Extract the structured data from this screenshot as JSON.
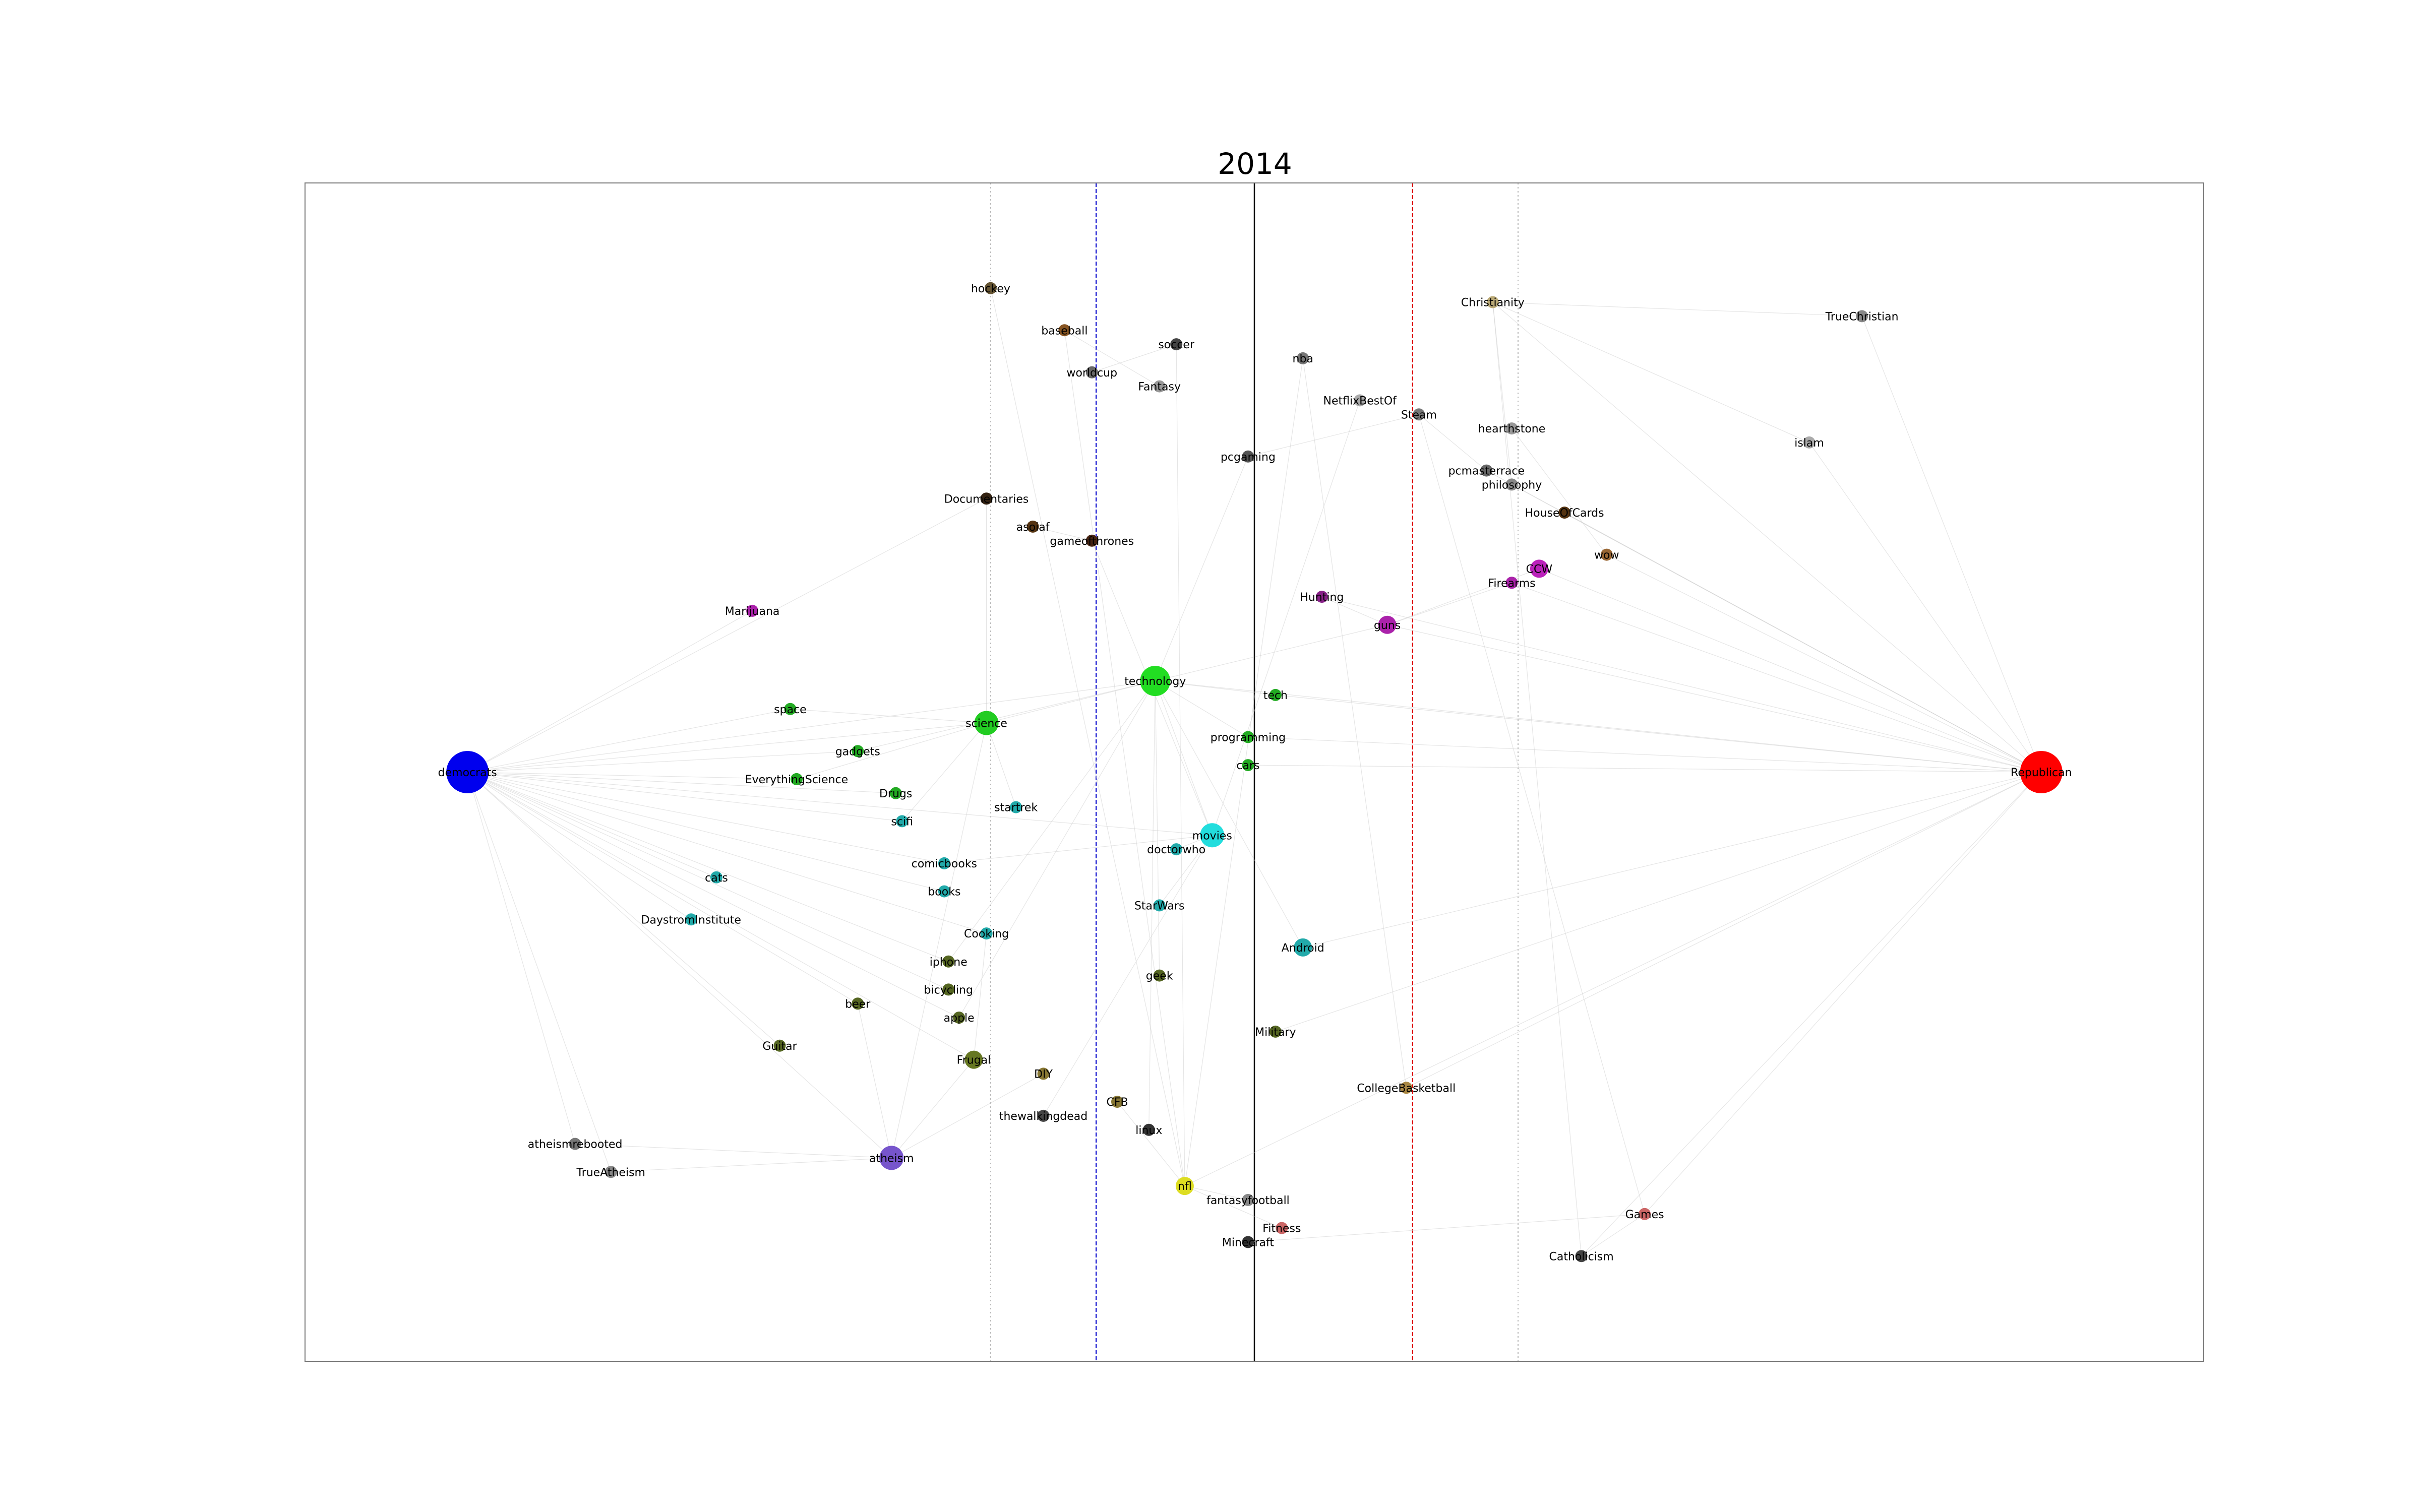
{
  "chart_data": {
    "type": "scatter",
    "title": "2014",
    "xlabel": "",
    "ylabel": "",
    "xlim": [
      -4.5,
      4.5
    ],
    "ylim": [
      -4.2,
      4.2
    ],
    "grid": false,
    "reference_lines": [
      {
        "x": -1.25,
        "color": "#bbbbbb",
        "style": "dotted"
      },
      {
        "x": -0.75,
        "color": "#0000cc",
        "style": "dashed"
      },
      {
        "x": 0,
        "color": "#000000",
        "style": "solid"
      },
      {
        "x": 0.75,
        "color": "#dd0000",
        "style": "dashed"
      },
      {
        "x": 1.25,
        "color": "#bbbbbb",
        "style": "dotted"
      }
    ],
    "nodes": [
      {
        "label": "democrats",
        "x": -3.73,
        "y": 0.0,
        "color": "#0000ee",
        "size": 7
      },
      {
        "label": "Republican",
        "x": 3.73,
        "y": 0.0,
        "color": "#ff0000",
        "size": 7
      },
      {
        "label": "technology",
        "x": -0.47,
        "y": 0.65,
        "color": "#22dd22",
        "size": 5
      },
      {
        "label": "science",
        "x": -1.27,
        "y": 0.35,
        "color": "#22cc22",
        "size": 4
      },
      {
        "label": "movies",
        "x": -0.2,
        "y": -0.45,
        "color": "#22dddd",
        "size": 4
      },
      {
        "label": "atheism",
        "x": -1.72,
        "y": -2.75,
        "color": "#7755cc",
        "size": 4
      },
      {
        "label": "nfl",
        "x": -0.33,
        "y": -2.95,
        "color": "#dddd22",
        "size": 3
      },
      {
        "label": "hockey",
        "x": -1.25,
        "y": 3.45,
        "color": "#665533",
        "size": 2
      },
      {
        "label": "baseball",
        "x": -0.9,
        "y": 3.15,
        "color": "#885522",
        "size": 2
      },
      {
        "label": "soccer",
        "x": -0.37,
        "y": 3.05,
        "color": "#444444",
        "size": 2
      },
      {
        "label": "worldcup",
        "x": -0.77,
        "y": 2.85,
        "color": "#666666",
        "size": 2
      },
      {
        "label": "Fantasy",
        "x": -0.45,
        "y": 2.75,
        "color": "#999999",
        "size": 2
      },
      {
        "label": "nba",
        "x": 0.23,
        "y": 2.95,
        "color": "#777777",
        "size": 2
      },
      {
        "label": "Christianity",
        "x": 1.13,
        "y": 3.35,
        "color": "#bbaa77",
        "size": 2
      },
      {
        "label": "TrueChristian",
        "x": 2.88,
        "y": 3.25,
        "color": "#888888",
        "size": 2
      },
      {
        "label": "NetflixBestOf",
        "x": 0.5,
        "y": 2.65,
        "color": "#aaaaaa",
        "size": 2
      },
      {
        "label": "Steam",
        "x": 0.78,
        "y": 2.55,
        "color": "#777777",
        "size": 2
      },
      {
        "label": "hearthstone",
        "x": 1.22,
        "y": 2.45,
        "color": "#999999",
        "size": 2
      },
      {
        "label": "islam",
        "x": 2.63,
        "y": 2.35,
        "color": "#aaaaaa",
        "size": 2
      },
      {
        "label": "pcgaming",
        "x": -0.03,
        "y": 2.25,
        "color": "#555555",
        "size": 2
      },
      {
        "label": "pcmasterrace",
        "x": 1.1,
        "y": 2.15,
        "color": "#666666",
        "size": 2
      },
      {
        "label": "philosophy",
        "x": 1.22,
        "y": 2.05,
        "color": "#888888",
        "size": 2
      },
      {
        "label": "Documentaries",
        "x": -1.27,
        "y": 1.95,
        "color": "#332211",
        "size": 2
      },
      {
        "label": "HouseOfCards",
        "x": 1.47,
        "y": 1.85,
        "color": "#553311",
        "size": 2
      },
      {
        "label": "asoiaf",
        "x": -1.05,
        "y": 1.75,
        "color": "#553311",
        "size": 2
      },
      {
        "label": "gameofthrones",
        "x": -0.77,
        "y": 1.65,
        "color": "#442211",
        "size": 2
      },
      {
        "label": "wow",
        "x": 1.67,
        "y": 1.55,
        "color": "#996633",
        "size": 2
      },
      {
        "label": "CCW",
        "x": 1.35,
        "y": 1.45,
        "color": "#bb22bb",
        "size": 3
      },
      {
        "label": "Firearms",
        "x": 1.22,
        "y": 1.35,
        "color": "#aa22aa",
        "size": 2
      },
      {
        "label": "Marijuana",
        "x": -2.38,
        "y": 1.15,
        "color": "#aa22aa",
        "size": 2
      },
      {
        "label": "Hunting",
        "x": 0.32,
        "y": 1.25,
        "color": "#882288",
        "size": 2
      },
      {
        "label": "guns",
        "x": 0.63,
        "y": 1.05,
        "color": "#aa22aa",
        "size": 3
      },
      {
        "label": "tech",
        "x": 0.1,
        "y": 0.55,
        "color": "#22aa22",
        "size": 2
      },
      {
        "label": "space",
        "x": -2.2,
        "y": 0.45,
        "color": "#22aa22",
        "size": 2
      },
      {
        "label": "programming",
        "x": -0.03,
        "y": 0.25,
        "color": "#22aa22",
        "size": 2
      },
      {
        "label": "gadgets",
        "x": -1.88,
        "y": 0.15,
        "color": "#22aa22",
        "size": 2
      },
      {
        "label": "cars",
        "x": -0.03,
        "y": 0.05,
        "color": "#22aa22",
        "size": 2
      },
      {
        "label": "EverythingScience",
        "x": -2.17,
        "y": -0.05,
        "color": "#22aa22",
        "size": 2
      },
      {
        "label": "Drugs",
        "x": -1.7,
        "y": -0.15,
        "color": "#22aa22",
        "size": 2
      },
      {
        "label": "startrek",
        "x": -1.13,
        "y": -0.25,
        "color": "#22aaaa",
        "size": 2
      },
      {
        "label": "scifi",
        "x": -1.67,
        "y": -0.35,
        "color": "#22aaaa",
        "size": 2
      },
      {
        "label": "doctorwho",
        "x": -0.37,
        "y": -0.55,
        "color": "#22aaaa",
        "size": 2
      },
      {
        "label": "comicbooks",
        "x": -1.47,
        "y": -0.65,
        "color": "#22aaaa",
        "size": 2
      },
      {
        "label": "cats",
        "x": -2.55,
        "y": -0.75,
        "color": "#22aaaa",
        "size": 2
      },
      {
        "label": "books",
        "x": -1.47,
        "y": -0.85,
        "color": "#22aaaa",
        "size": 2
      },
      {
        "label": "StarWars",
        "x": -0.45,
        "y": -0.95,
        "color": "#22aaaa",
        "size": 2
      },
      {
        "label": "DaystromInstitute",
        "x": -2.67,
        "y": -1.05,
        "color": "#22aaaa",
        "size": 2
      },
      {
        "label": "Cooking",
        "x": -1.27,
        "y": -1.15,
        "color": "#22aaaa",
        "size": 2
      },
      {
        "label": "Android",
        "x": 0.23,
        "y": -1.25,
        "color": "#22aaaa",
        "size": 3
      },
      {
        "label": "iphone",
        "x": -1.45,
        "y": -1.35,
        "color": "#556622",
        "size": 2
      },
      {
        "label": "bicycling",
        "x": -1.45,
        "y": -1.55,
        "color": "#556622",
        "size": 2
      },
      {
        "label": "geek",
        "x": -0.45,
        "y": -1.45,
        "color": "#556622",
        "size": 2
      },
      {
        "label": "beer",
        "x": -1.88,
        "y": -1.65,
        "color": "#556622",
        "size": 2
      },
      {
        "label": "apple",
        "x": -1.4,
        "y": -1.75,
        "color": "#556622",
        "size": 2
      },
      {
        "label": "Military",
        "x": 0.1,
        "y": -1.85,
        "color": "#556622",
        "size": 2
      },
      {
        "label": "Guitar",
        "x": -2.25,
        "y": -1.95,
        "color": "#556622",
        "size": 2
      },
      {
        "label": "Frugal",
        "x": -1.33,
        "y": -2.05,
        "color": "#667722",
        "size": 3
      },
      {
        "label": "DIY",
        "x": -1.0,
        "y": -2.15,
        "color": "#887733",
        "size": 2
      },
      {
        "label": "CollegeBasketball",
        "x": 0.72,
        "y": -2.25,
        "color": "#aa8844",
        "size": 2
      },
      {
        "label": "CFB",
        "x": -0.65,
        "y": -2.35,
        "color": "#887733",
        "size": 2
      },
      {
        "label": "thewalkingdead",
        "x": -1.0,
        "y": -2.45,
        "color": "#444444",
        "size": 2
      },
      {
        "label": "linux",
        "x": -0.5,
        "y": -2.55,
        "color": "#333333",
        "size": 2
      },
      {
        "label": "atheismrebooted",
        "x": -3.22,
        "y": -2.65,
        "color": "#777777",
        "size": 2
      },
      {
        "label": "TrueAtheism",
        "x": -3.05,
        "y": -2.85,
        "color": "#888888",
        "size": 2
      },
      {
        "label": "fantasyfootball",
        "x": -0.03,
        "y": -3.05,
        "color": "#888888",
        "size": 2
      },
      {
        "label": "Games",
        "x": 1.85,
        "y": -3.15,
        "color": "#cc6666",
        "size": 2
      },
      {
        "label": "Fitness",
        "x": 0.13,
        "y": -3.25,
        "color": "#cc6666",
        "size": 2
      },
      {
        "label": "Minecraft",
        "x": -0.03,
        "y": -3.35,
        "color": "#333333",
        "size": 2
      },
      {
        "label": "Catholicism",
        "x": 1.55,
        "y": -3.45,
        "color": "#444444",
        "size": 2
      }
    ],
    "edges": [
      [
        "democrats",
        "technology"
      ],
      [
        "democrats",
        "science"
      ],
      [
        "democrats",
        "atheism"
      ],
      [
        "democrats",
        "space"
      ],
      [
        "democrats",
        "gadgets"
      ],
      [
        "democrats",
        "EverythingScience"
      ],
      [
        "democrats",
        "Marijuana"
      ],
      [
        "democrats",
        "cats"
      ],
      [
        "democrats",
        "DaystromInstitute"
      ],
      [
        "democrats",
        "Drugs"
      ],
      [
        "democrats",
        "scifi"
      ],
      [
        "democrats",
        "comicbooks"
      ],
      [
        "democrats",
        "books"
      ],
      [
        "democrats",
        "Cooking"
      ],
      [
        "democrats",
        "iphone"
      ],
      [
        "democrats",
        "bicycling"
      ],
      [
        "democrats",
        "beer"
      ],
      [
        "democrats",
        "Guitar"
      ],
      [
        "democrats",
        "Frugal"
      ],
      [
        "democrats",
        "atheismrebooted"
      ],
      [
        "democrats",
        "TrueAtheism"
      ],
      [
        "democrats",
        "Documentaries"
      ],
      [
        "democrats",
        "movies"
      ],
      [
        "democrats",
        "apple"
      ],
      [
        "Republican",
        "guns"
      ],
      [
        "Republican",
        "Firearms"
      ],
      [
        "Republican",
        "CCW"
      ],
      [
        "Republican",
        "Christianity"
      ],
      [
        "Republican",
        "TrueChristian"
      ],
      [
        "Republican",
        "islam"
      ],
      [
        "Republican",
        "Hunting"
      ],
      [
        "Republican",
        "Military"
      ],
      [
        "Republican",
        "technology"
      ],
      [
        "Republican",
        "cars"
      ],
      [
        "Republican",
        "Games"
      ],
      [
        "Republican",
        "Catholicism"
      ],
      [
        "Republican",
        "wow"
      ],
      [
        "Republican",
        "HouseOfCards"
      ],
      [
        "Republican",
        "philosophy"
      ],
      [
        "Republican",
        "CollegeBasketball"
      ],
      [
        "Republican",
        "nfl"
      ],
      [
        "Republican",
        "Android"
      ],
      [
        "Republican",
        "tech"
      ],
      [
        "Republican",
        "programming"
      ],
      [
        "Republican",
        "pcmasterrace"
      ],
      [
        "technology",
        "science"
      ],
      [
        "technology",
        "movies"
      ],
      [
        "technology",
        "tech"
      ],
      [
        "technology",
        "programming"
      ],
      [
        "technology",
        "gadgets"
      ],
      [
        "technology",
        "Android"
      ],
      [
        "technology",
        "apple"
      ],
      [
        "technology",
        "geek"
      ],
      [
        "technology",
        "pcgaming"
      ],
      [
        "technology",
        "linux"
      ],
      [
        "technology",
        "iphone"
      ],
      [
        "technology",
        "guns"
      ],
      [
        "science",
        "space"
      ],
      [
        "science",
        "EverythingScience"
      ],
      [
        "science",
        "startrek"
      ],
      [
        "science",
        "atheism"
      ],
      [
        "science",
        "Documentaries"
      ],
      [
        "science",
        "scifi"
      ],
      [
        "movies",
        "doctorwho"
      ],
      [
        "movies",
        "StarWars"
      ],
      [
        "movies",
        "gameofthrones"
      ],
      [
        "movies",
        "NetflixBestOf"
      ],
      [
        "movies",
        "thewalkingdead"
      ],
      [
        "movies",
        "comicbooks"
      ],
      [
        "atheism",
        "TrueAtheism"
      ],
      [
        "atheism",
        "atheismrebooted"
      ],
      [
        "atheism",
        "Frugal"
      ],
      [
        "atheism",
        "beer"
      ],
      [
        "atheism",
        "DIY"
      ],
      [
        "nfl",
        "fantasyfootball"
      ],
      [
        "nfl",
        "CFB"
      ],
      [
        "nfl",
        "Fitness"
      ],
      [
        "nfl",
        "nba"
      ],
      [
        "nfl",
        "baseball"
      ],
      [
        "nfl",
        "hockey"
      ],
      [
        "nfl",
        "soccer"
      ],
      [
        "soccer",
        "worldcup"
      ],
      [
        "nba",
        "CollegeBasketball"
      ],
      [
        "Christianity",
        "TrueChristian"
      ],
      [
        "Christianity",
        "Catholicism"
      ],
      [
        "Christianity",
        "islam"
      ],
      [
        "Christianity",
        "philosophy"
      ],
      [
        "guns",
        "Firearms"
      ],
      [
        "guns",
        "CCW"
      ],
      [
        "guns",
        "Hunting"
      ],
      [
        "Steam",
        "pcgaming"
      ],
      [
        "Steam",
        "pcmasterrace"
      ],
      [
        "Steam",
        "Games"
      ],
      [
        "hearthstone",
        "wow"
      ],
      [
        "Minecraft",
        "Games"
      ],
      [
        "asoiaf",
        "gameofthrones"
      ],
      [
        "Frugal",
        "Cooking"
      ],
      [
        "Fantasy",
        "baseball"
      ],
      [
        "Games",
        "Catholicism"
      ]
    ]
  }
}
